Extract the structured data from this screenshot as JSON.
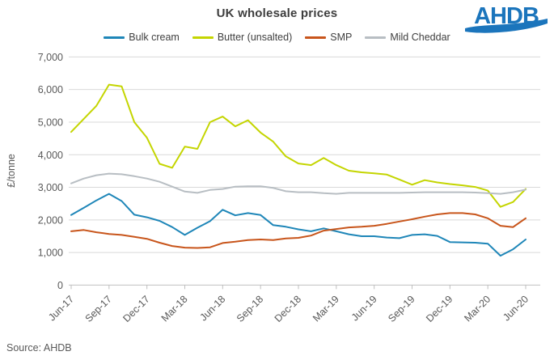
{
  "header": {
    "title": "UK wholesale prices",
    "logo_text": "AHDB"
  },
  "source_note": "Source: AHDB",
  "colors": {
    "title_text": "#3d3d3d",
    "axis_text": "#595959",
    "gridline": "#d9d9d9",
    "axis_line": "#bfbfbf",
    "logo_blue": "#1b75bc"
  },
  "chart_data": {
    "type": "line",
    "title": "UK wholesale prices",
    "xlabel": "",
    "ylabel": "£/tonne",
    "ylim": [
      0,
      7000
    ],
    "y_tick_step": 1000,
    "y_tick_labels": [
      "0",
      "1,000",
      "2,000",
      "3,000",
      "4,000",
      "5,000",
      "6,000",
      "7,000"
    ],
    "grid": "horizontal",
    "legend_position": "top",
    "x_tick_labels": [
      "Jun-17",
      "Sep-17",
      "Dec-17",
      "Mar-18",
      "Jun-18",
      "Sep-18",
      "Dec-18",
      "Mar-19",
      "Jun-19",
      "Sep-19",
      "Dec-19",
      "Mar-20",
      "Jun-20"
    ],
    "months": [
      "Jun-17",
      "Jul-17",
      "Aug-17",
      "Sep-17",
      "Oct-17",
      "Nov-17",
      "Dec-17",
      "Jan-18",
      "Feb-18",
      "Mar-18",
      "Apr-18",
      "May-18",
      "Jun-18",
      "Jul-18",
      "Aug-18",
      "Sep-18",
      "Oct-18",
      "Nov-18",
      "Dec-18",
      "Jan-19",
      "Feb-19",
      "Mar-19",
      "Apr-19",
      "May-19",
      "Jun-19",
      "Jul-19",
      "Aug-19",
      "Sep-19",
      "Oct-19",
      "Nov-19",
      "Dec-19",
      "Jan-20",
      "Feb-20",
      "Mar-20",
      "Apr-20",
      "May-20",
      "Jun-20"
    ],
    "series": [
      {
        "name": "Bulk cream",
        "color": "#1e86b8",
        "values": [
          2150,
          2370,
          2600,
          2800,
          2580,
          2160,
          2080,
          1970,
          1780,
          1540,
          1760,
          1960,
          2310,
          2140,
          2210,
          2150,
          1840,
          1790,
          1710,
          1650,
          1740,
          1650,
          1560,
          1500,
          1500,
          1460,
          1440,
          1540,
          1560,
          1510,
          1320,
          1310,
          1300,
          1270,
          900,
          1100,
          1400
        ]
      },
      {
        "name": "Butter (unsalted)",
        "color": "#c4d500",
        "values": [
          4700,
          5100,
          5500,
          6150,
          6100,
          5000,
          4520,
          3720,
          3600,
          4250,
          4180,
          5000,
          5170,
          4870,
          5060,
          4680,
          4400,
          3950,
          3730,
          3680,
          3900,
          3680,
          3510,
          3460,
          3430,
          3390,
          3240,
          3080,
          3220,
          3150,
          3100,
          3060,
          3010,
          2900,
          2400,
          2550,
          2950
        ]
      },
      {
        "name": "SMP",
        "color": "#c8551b",
        "values": [
          1650,
          1690,
          1620,
          1570,
          1540,
          1480,
          1420,
          1300,
          1200,
          1150,
          1140,
          1160,
          1290,
          1330,
          1380,
          1400,
          1380,
          1430,
          1450,
          1520,
          1670,
          1720,
          1770,
          1790,
          1820,
          1880,
          1950,
          2020,
          2100,
          2170,
          2210,
          2210,
          2170,
          2050,
          1820,
          1780,
          2050
        ]
      },
      {
        "name": "Mild Cheddar",
        "color": "#b8bec3",
        "values": [
          3120,
          3270,
          3370,
          3420,
          3400,
          3340,
          3270,
          3170,
          3020,
          2870,
          2830,
          2920,
          2950,
          3020,
          3030,
          3030,
          2980,
          2880,
          2850,
          2850,
          2820,
          2800,
          2830,
          2830,
          2830,
          2830,
          2830,
          2840,
          2850,
          2850,
          2850,
          2850,
          2840,
          2820,
          2800,
          2850,
          2930
        ]
      }
    ]
  }
}
